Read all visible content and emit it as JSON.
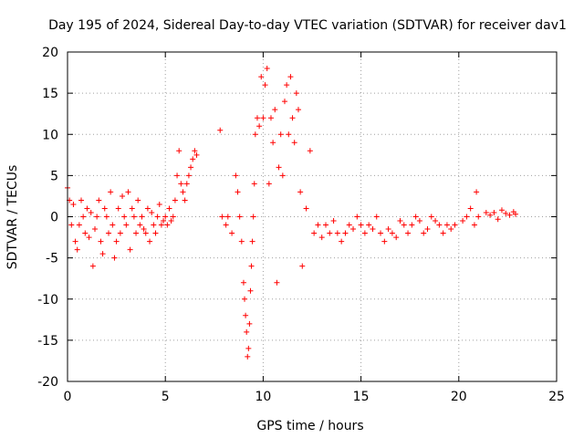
{
  "chart_data": {
    "type": "scatter",
    "title": "Day 195 of 2024, Sidereal Day-to-day VTEC variation (SDTVAR) for receiver dav1",
    "xlabel": "GPS time / hours",
    "ylabel": "SDTVAR / TECUs",
    "xlim": [
      0,
      25
    ],
    "ylim": [
      -20,
      20
    ],
    "xticks": [
      0,
      5,
      10,
      15,
      20,
      25
    ],
    "yticks": [
      -20,
      -15,
      -10,
      -5,
      0,
      5,
      10,
      15,
      20
    ],
    "grid": true,
    "marker": "+",
    "color": "#ff0000",
    "series": [
      {
        "name": "SDTVAR",
        "x": [
          0.0,
          0.1,
          0.2,
          0.3,
          0.4,
          0.5,
          0.6,
          0.7,
          0.8,
          0.9,
          1.0,
          1.1,
          1.2,
          1.3,
          1.4,
          1.5,
          1.6,
          1.7,
          1.8,
          1.9,
          2.0,
          2.1,
          2.2,
          2.3,
          2.4,
          2.5,
          2.6,
          2.7,
          2.8,
          2.9,
          3.0,
          3.1,
          3.2,
          3.3,
          3.4,
          3.5,
          3.6,
          3.7,
          3.8,
          3.9,
          4.0,
          4.1,
          4.2,
          4.3,
          4.4,
          4.5,
          4.6,
          4.7,
          4.8,
          4.9,
          5.0,
          5.1,
          5.2,
          5.3,
          5.4,
          5.5,
          5.6,
          5.7,
          5.8,
          5.9,
          6.0,
          6.1,
          6.2,
          6.3,
          6.4,
          6.5,
          6.6,
          7.8,
          7.9,
          8.1,
          8.2,
          8.4,
          8.6,
          8.7,
          8.8,
          8.9,
          9.0,
          9.05,
          9.1,
          9.15,
          9.2,
          9.25,
          9.3,
          9.35,
          9.4,
          9.45,
          9.5,
          9.55,
          9.6,
          9.7,
          9.8,
          9.9,
          10.0,
          10.1,
          10.2,
          10.3,
          10.4,
          10.5,
          10.6,
          10.7,
          10.8,
          10.9,
          11.0,
          11.1,
          11.2,
          11.3,
          11.4,
          11.5,
          11.6,
          11.7,
          11.8,
          11.9,
          12.0,
          12.2,
          12.4,
          12.6,
          12.8,
          13.0,
          13.2,
          13.4,
          13.6,
          13.8,
          14.0,
          14.2,
          14.4,
          14.6,
          14.8,
          15.0,
          15.2,
          15.4,
          15.6,
          15.8,
          16.0,
          16.2,
          16.4,
          16.6,
          16.8,
          17.0,
          17.2,
          17.4,
          17.6,
          17.8,
          18.0,
          18.2,
          18.4,
          18.6,
          18.8,
          19.0,
          19.2,
          19.4,
          19.6,
          19.8,
          20.2,
          20.4,
          20.6,
          20.8,
          20.9,
          21.0,
          21.4,
          21.6,
          21.8,
          22.0,
          22.2,
          22.4,
          22.6,
          22.8,
          22.9
        ],
        "y": [
          3.5,
          2,
          -1,
          1.5,
          -3,
          -4,
          -1,
          2,
          0,
          -2,
          1,
          -2.5,
          0.5,
          -6,
          -1.5,
          0,
          2,
          -3,
          -4.5,
          1,
          0,
          -2,
          3,
          -1,
          -5,
          -3,
          1,
          -2,
          2.5,
          0,
          -1,
          3,
          -4,
          1,
          0,
          -2,
          2,
          -1,
          0,
          -1.5,
          -2,
          1,
          -3,
          0.5,
          -1,
          -2,
          0,
          1.5,
          -1,
          -0.5,
          0,
          -1,
          1,
          -0.5,
          0,
          2,
          5,
          8,
          4,
          3,
          2,
          4,
          5,
          6,
          7,
          8,
          7.5,
          10.5,
          0,
          -1,
          0,
          -2,
          5,
          3,
          0,
          -3,
          -8,
          -10,
          -12,
          -14,
          -17,
          -16,
          -13,
          -9,
          -6,
          -3,
          0,
          4,
          10,
          12,
          11,
          17,
          12,
          16,
          18,
          4,
          12,
          9,
          13,
          -8,
          6,
          10,
          5,
          14,
          16,
          10,
          17,
          12,
          9,
          15,
          13,
          3,
          -6,
          1,
          8,
          -2,
          -1,
          -2.5,
          -1,
          -2,
          -0.5,
          -2,
          -3,
          -2,
          -1,
          -1.5,
          0,
          -1,
          -2,
          -1,
          -1.5,
          0,
          -2,
          -3,
          -1.5,
          -2,
          -2.5,
          -0.5,
          -1,
          -2,
          -1,
          0,
          -0.5,
          -2,
          -1.5,
          0,
          -0.5,
          -1,
          -2,
          -1,
          -1.5,
          -1,
          -0.5,
          0,
          1,
          -1,
          3,
          0,
          0.5,
          0.2,
          0.5,
          -0.3,
          0.8,
          0.4,
          0.2,
          0.6,
          0.3
        ]
      }
    ]
  }
}
